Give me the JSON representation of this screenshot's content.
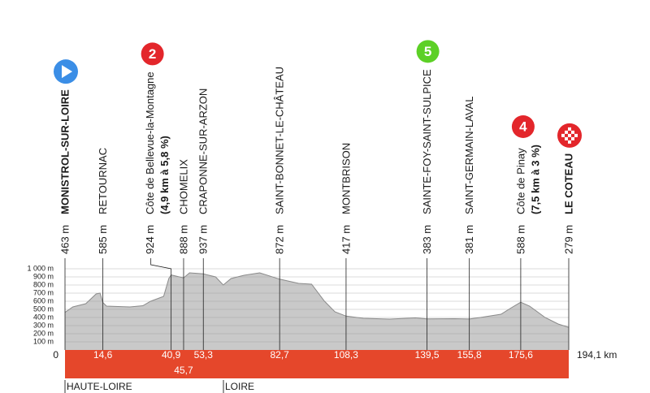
{
  "chart_data": {
    "type": "area",
    "x": [
      0,
      3,
      8,
      12,
      13.5,
      14.6,
      16,
      25,
      30,
      33,
      38,
      40,
      40.9,
      45.7,
      48,
      53.3,
      58,
      61,
      64,
      69,
      75,
      82.7,
      90,
      95,
      100,
      104,
      108.3,
      115,
      125,
      135,
      139.5,
      150,
      155.8,
      160,
      168,
      172,
      175.6,
      179,
      185,
      190,
      194.1
    ],
    "values": [
      463,
      530,
      570,
      690,
      700,
      585,
      540,
      530,
      545,
      600,
      660,
      880,
      924,
      888,
      950,
      937,
      900,
      800,
      880,
      920,
      950,
      872,
      820,
      810,
      600,
      470,
      417,
      390,
      380,
      395,
      383,
      385,
      381,
      400,
      440,
      520,
      588,
      540,
      400,
      320,
      279
    ],
    "color": "#c9c9c9",
    "line_color": "#8a8a8a",
    "band_color": "#e5472b",
    "xlim": [
      0,
      194.1
    ],
    "ylim": [
      0,
      1000
    ],
    "xticks": [
      0,
      {
        "value": 14.6,
        "label": "14,6"
      },
      {
        "value": 40.9,
        "label": "40,9"
      },
      {
        "value": 45.7,
        "label": "45,7"
      },
      {
        "value": 53.3,
        "label": "53,3"
      },
      {
        "value": 82.7,
        "label": "82,7"
      },
      {
        "value": 108.3,
        "label": "108,3"
      },
      {
        "value": 139.5,
        "label": "139,5"
      },
      {
        "value": 155.8,
        "label": "155,8"
      },
      {
        "value": 175.6,
        "label": "175,6"
      },
      {
        "value": 194.1,
        "label": "194,1 km"
      }
    ],
    "yticks": [
      {
        "value": 100,
        "label": "100 m"
      },
      {
        "value": 200,
        "label": "200 m"
      },
      {
        "value": 300,
        "label": "300 m"
      },
      {
        "value": 400,
        "label": "400 m"
      },
      {
        "value": 500,
        "label": "500 m"
      },
      {
        "value": 600,
        "label": "600 m"
      },
      {
        "value": 700,
        "label": "700 m"
      },
      {
        "value": 800,
        "label": "800 m"
      },
      {
        "value": 900,
        "label": "900 m"
      },
      {
        "value": 1000,
        "label": "1 000 m"
      }
    ],
    "grid": true,
    "waypoints": [
      {
        "altitude": "463 m",
        "name": "MONISTROL-SUR-LOIRE"
      },
      {
        "altitude": "585 m",
        "name": "RETOURNAC"
      },
      {
        "altitude": "924 m",
        "name": "Côte de Bellevue-la-Montagne",
        "detail": "(4,9 km à 5,8 %)",
        "badge": "2",
        "badge_color": "#e3262b"
      },
      {
        "altitude": "888 m",
        "name": "CHOMELIX"
      },
      {
        "altitude": "937 m",
        "name": "CRAPONNE-SUR-ARZON"
      },
      {
        "altitude": "872 m",
        "name": "SAINT-BONNET-LE-CHÂTEAU"
      },
      {
        "altitude": "417 m",
        "name": "MONTBRISON"
      },
      {
        "altitude": "383 m",
        "name": "SAINTE-FOY-SAINT-SULPICE",
        "badge": "5",
        "badge_color": "#5cd026"
      },
      {
        "altitude": "381 m",
        "name": "SAINT-GERMAIN-LAVAL"
      },
      {
        "altitude": "588 m",
        "name": "Côte de Pinay",
        "detail": "(7,5 km à 3 %)",
        "badge": "4",
        "badge_color": "#e3262b"
      },
      {
        "altitude": "279 m",
        "name": "LE COTEAU"
      }
    ],
    "regions": [
      "HAUTE-LOIRE",
      "LOIRE"
    ]
  }
}
